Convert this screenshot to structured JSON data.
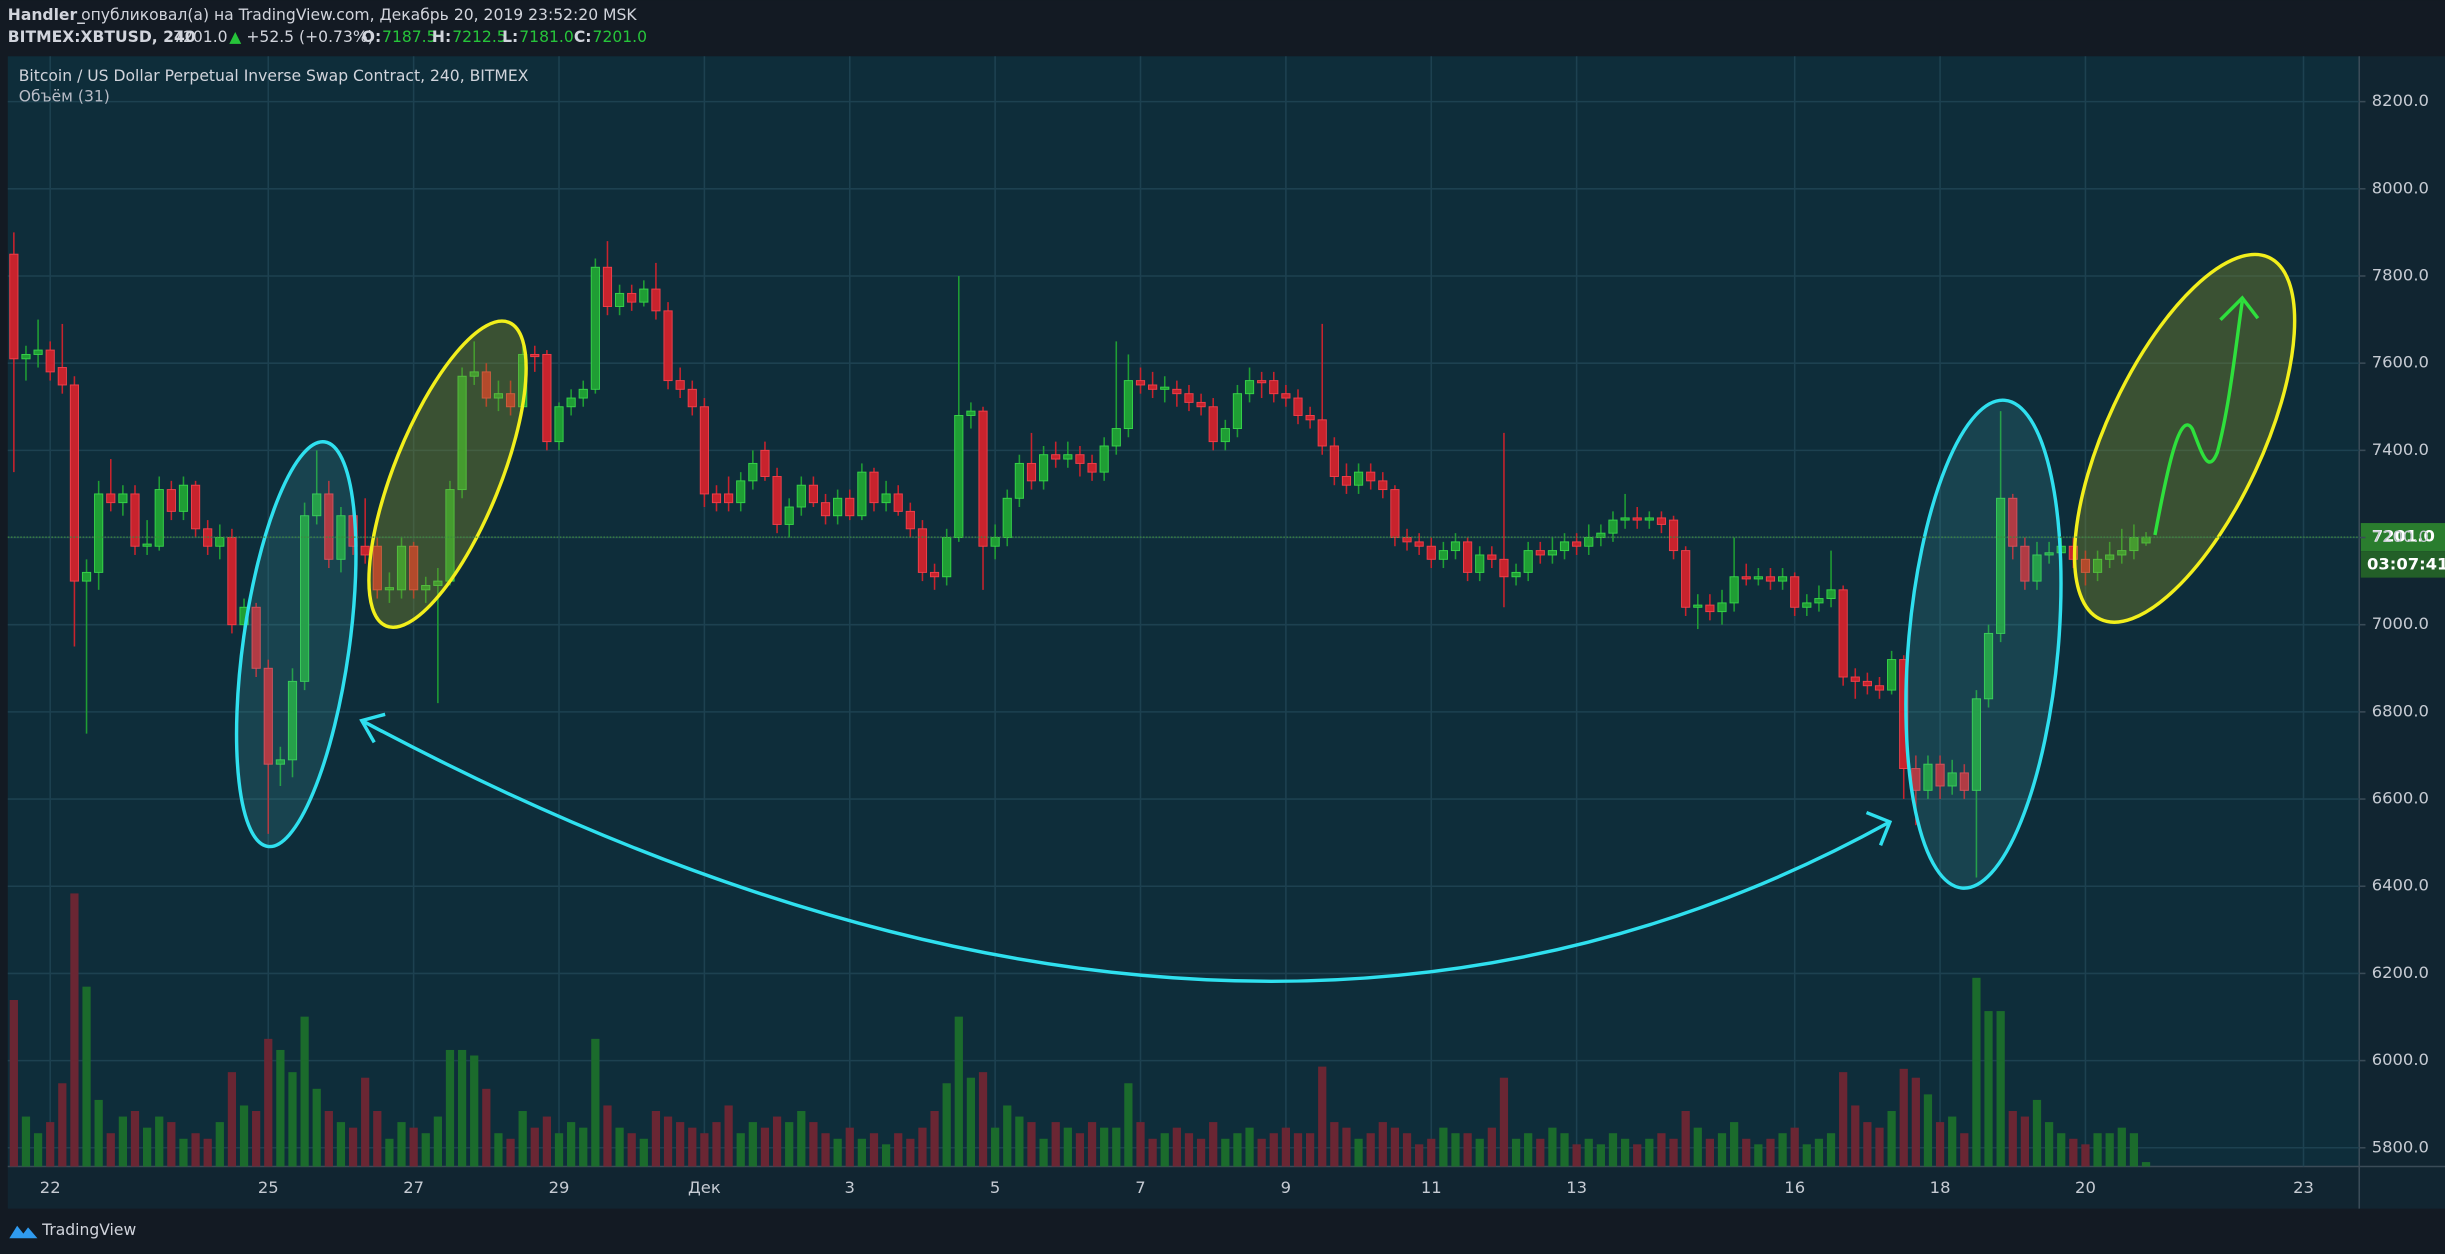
{
  "header": {
    "author": "Handler_",
    "published": "опубликовал(а) на TradingView.com, Декабрь 20, 2019 23:52:20 MSK",
    "symbol": "BITMEX:XBTUSD, 240",
    "last": "7201.0",
    "arrow": "▲",
    "change": "+52.5 (+0.73%)",
    "o_label": "O:",
    "o": "7187.5",
    "h_label": "H:",
    "h": "7212.5",
    "l_label": "L:",
    "l": "7181.0",
    "c_label": "C:",
    "c": "7201.0"
  },
  "footer": {
    "brand": "TradingView"
  },
  "chart_data": {
    "type": "candlestick",
    "title": "Bitcoin / US Dollar Perpetual Inverse Swap Contract, 240, BITMEX",
    "subtitle": "Объём (31)",
    "up_color": "#1f9e34",
    "down_color": "#c8232d",
    "volume_up_color": "#1b6b2c",
    "volume_down_color": "#6a2633",
    "grid": true,
    "ylim": [
      5757,
      8304
    ],
    "yticks": [
      {
        "value": 5800,
        "label": "5800.0"
      },
      {
        "value": 6000,
        "label": "6000.0"
      },
      {
        "value": 6200,
        "label": "6200.0"
      },
      {
        "value": 6400,
        "label": "6400.0"
      },
      {
        "value": 6600,
        "label": "6600.0"
      },
      {
        "value": 6800,
        "label": "6800.0"
      },
      {
        "value": 7000,
        "label": "7000.0"
      },
      {
        "value": 7200,
        "label": "7200.0"
      },
      {
        "value": 7400,
        "label": "7400.0"
      },
      {
        "value": 7600,
        "label": "7600.0"
      },
      {
        "value": 7800,
        "label": "7800.0"
      },
      {
        "value": 8000,
        "label": "8000.0"
      },
      {
        "value": 8200,
        "label": "8200.0"
      }
    ],
    "xlim": [
      -0.5,
      193.6
    ],
    "xticks": [
      {
        "value": 3,
        "label": "22"
      },
      {
        "value": 21,
        "label": "25"
      },
      {
        "value": 33,
        "label": "27"
      },
      {
        "value": 45,
        "label": "29"
      },
      {
        "value": 57,
        "label": "Дек"
      },
      {
        "value": 69,
        "label": "3"
      },
      {
        "value": 81,
        "label": "5"
      },
      {
        "value": 93,
        "label": "7"
      },
      {
        "value": 105,
        "label": "9"
      },
      {
        "value": 117,
        "label": "11"
      },
      {
        "value": 129,
        "label": "13"
      },
      {
        "value": 147,
        "label": "16"
      },
      {
        "value": 159,
        "label": "18"
      },
      {
        "value": 171,
        "label": "20"
      },
      {
        "value": 189,
        "label": "23"
      }
    ],
    "volume_lim": [
      0,
      1000
    ],
    "last_price": {
      "value": 7201,
      "label": "7201.0"
    },
    "countdown": "03:07:41",
    "candles": [
      [
        7850,
        7900,
        7350,
        7610
      ],
      [
        7610,
        7640,
        7560,
        7620
      ],
      [
        7620,
        7700,
        7590,
        7630
      ],
      [
        7630,
        7650,
        7560,
        7580
      ],
      [
        7590,
        7690,
        7530,
        7550
      ],
      [
        7550,
        7570,
        6950,
        7100
      ],
      [
        7100,
        7150,
        6750,
        7120
      ],
      [
        7120,
        7330,
        7080,
        7300
      ],
      [
        7300,
        7380,
        7260,
        7280
      ],
      [
        7280,
        7320,
        7250,
        7300
      ],
      [
        7300,
        7320,
        7160,
        7180
      ],
      [
        7180,
        7240,
        7160,
        7185
      ],
      [
        7180,
        7340,
        7170,
        7310
      ],
      [
        7310,
        7330,
        7240,
        7260
      ],
      [
        7260,
        7340,
        7240,
        7320
      ],
      [
        7320,
        7330,
        7200,
        7220
      ],
      [
        7220,
        7240,
        7160,
        7180
      ],
      [
        7180,
        7230,
        7150,
        7200
      ],
      [
        7200,
        7220,
        6980,
        7000
      ],
      [
        7000,
        7060,
        6960,
        7040
      ],
      [
        7040,
        7050,
        6880,
        6900
      ],
      [
        6900,
        6920,
        6520,
        6680
      ],
      [
        6680,
        6720,
        6630,
        6690
      ],
      [
        6690,
        6900,
        6650,
        6870
      ],
      [
        6870,
        7280,
        6850,
        7250
      ],
      [
        7250,
        7400,
        7230,
        7300
      ],
      [
        7300,
        7330,
        7130,
        7150
      ],
      [
        7150,
        7270,
        7120,
        7250
      ],
      [
        7250,
        7280,
        7160,
        7180
      ],
      [
        7180,
        7290,
        7140,
        7160
      ],
      [
        7180,
        7200,
        7060,
        7080
      ],
      [
        7080,
        7120,
        7050,
        7085
      ],
      [
        7080,
        7200,
        7060,
        7180
      ],
      [
        7180,
        7190,
        7060,
        7080
      ],
      [
        7080,
        7110,
        7050,
        7090
      ],
      [
        7090,
        7130,
        6820,
        7100
      ],
      [
        7100,
        7330,
        7090,
        7310
      ],
      [
        7310,
        7590,
        7290,
        7570
      ],
      [
        7570,
        7650,
        7550,
        7580
      ],
      [
        7580,
        7600,
        7500,
        7520
      ],
      [
        7520,
        7560,
        7490,
        7530
      ],
      [
        7530,
        7560,
        7480,
        7500
      ],
      [
        7500,
        7640,
        7490,
        7620
      ],
      [
        7620,
        7640,
        7580,
        7615
      ],
      [
        7620,
        7630,
        7400,
        7420
      ],
      [
        7420,
        7510,
        7400,
        7500
      ],
      [
        7500,
        7540,
        7480,
        7520
      ],
      [
        7520,
        7560,
        7500,
        7540
      ],
      [
        7540,
        7840,
        7530,
        7820
      ],
      [
        7820,
        7880,
        7710,
        7730
      ],
      [
        7730,
        7780,
        7710,
        7760
      ],
      [
        7760,
        7780,
        7720,
        7740
      ],
      [
        7740,
        7790,
        7730,
        7770
      ],
      [
        7770,
        7830,
        7700,
        7720
      ],
      [
        7720,
        7740,
        7540,
        7560
      ],
      [
        7560,
        7590,
        7520,
        7540
      ],
      [
        7540,
        7560,
        7480,
        7500
      ],
      [
        7500,
        7520,
        7270,
        7300
      ],
      [
        7300,
        7320,
        7260,
        7280
      ],
      [
        7300,
        7340,
        7260,
        7280
      ],
      [
        7280,
        7350,
        7260,
        7330
      ],
      [
        7330,
        7400,
        7310,
        7370
      ],
      [
        7400,
        7420,
        7330,
        7340
      ],
      [
        7340,
        7360,
        7210,
        7230
      ],
      [
        7230,
        7290,
        7200,
        7270
      ],
      [
        7270,
        7340,
        7250,
        7320
      ],
      [
        7320,
        7340,
        7270,
        7280
      ],
      [
        7280,
        7300,
        7230,
        7250
      ],
      [
        7250,
        7310,
        7230,
        7290
      ],
      [
        7290,
        7310,
        7240,
        7250
      ],
      [
        7250,
        7370,
        7240,
        7350
      ],
      [
        7350,
        7360,
        7260,
        7280
      ],
      [
        7280,
        7330,
        7260,
        7300
      ],
      [
        7300,
        7320,
        7250,
        7260
      ],
      [
        7260,
        7280,
        7200,
        7220
      ],
      [
        7220,
        7240,
        7100,
        7120
      ],
      [
        7120,
        7140,
        7080,
        7110
      ],
      [
        7110,
        7220,
        7090,
        7200
      ],
      [
        7200,
        7800,
        7190,
        7480
      ],
      [
        7480,
        7510,
        7450,
        7490
      ],
      [
        7490,
        7500,
        7080,
        7180
      ],
      [
        7180,
        7230,
        7150,
        7200
      ],
      [
        7200,
        7310,
        7180,
        7290
      ],
      [
        7290,
        7390,
        7270,
        7370
      ],
      [
        7370,
        7440,
        7310,
        7330
      ],
      [
        7330,
        7410,
        7310,
        7390
      ],
      [
        7390,
        7420,
        7360,
        7380
      ],
      [
        7380,
        7420,
        7360,
        7390
      ],
      [
        7390,
        7410,
        7340,
        7370
      ],
      [
        7370,
        7390,
        7330,
        7350
      ],
      [
        7350,
        7430,
        7330,
        7410
      ],
      [
        7410,
        7650,
        7390,
        7450
      ],
      [
        7450,
        7620,
        7430,
        7560
      ],
      [
        7560,
        7590,
        7530,
        7550
      ],
      [
        7550,
        7580,
        7520,
        7540
      ],
      [
        7540,
        7570,
        7510,
        7545
      ],
      [
        7540,
        7560,
        7500,
        7530
      ],
      [
        7530,
        7550,
        7490,
        7510
      ],
      [
        7510,
        7530,
        7480,
        7500
      ],
      [
        7500,
        7520,
        7400,
        7420
      ],
      [
        7420,
        7470,
        7400,
        7450
      ],
      [
        7450,
        7550,
        7430,
        7530
      ],
      [
        7530,
        7590,
        7510,
        7560
      ],
      [
        7560,
        7580,
        7520,
        7555
      ],
      [
        7560,
        7580,
        7510,
        7530
      ],
      [
        7530,
        7550,
        7500,
        7520
      ],
      [
        7520,
        7540,
        7460,
        7480
      ],
      [
        7480,
        7500,
        7450,
        7470
      ],
      [
        7470,
        7690,
        7390,
        7410
      ],
      [
        7410,
        7430,
        7320,
        7340
      ],
      [
        7340,
        7370,
        7300,
        7320
      ],
      [
        7320,
        7370,
        7300,
        7350
      ],
      [
        7350,
        7370,
        7310,
        7330
      ],
      [
        7330,
        7350,
        7290,
        7310
      ],
      [
        7310,
        7320,
        7180,
        7200
      ],
      [
        7200,
        7220,
        7170,
        7190
      ],
      [
        7190,
        7210,
        7160,
        7180
      ],
      [
        7180,
        7200,
        7130,
        7150
      ],
      [
        7150,
        7190,
        7130,
        7170
      ],
      [
        7170,
        7210,
        7150,
        7190
      ],
      [
        7190,
        7200,
        7100,
        7120
      ],
      [
        7120,
        7180,
        7100,
        7160
      ],
      [
        7160,
        7180,
        7130,
        7150
      ],
      [
        7150,
        7440,
        7040,
        7110
      ],
      [
        7110,
        7140,
        7090,
        7120
      ],
      [
        7120,
        7190,
        7100,
        7170
      ],
      [
        7170,
        7190,
        7140,
        7160
      ],
      [
        7160,
        7200,
        7140,
        7170
      ],
      [
        7170,
        7210,
        7150,
        7190
      ],
      [
        7190,
        7210,
        7160,
        7180
      ],
      [
        7180,
        7230,
        7160,
        7200
      ],
      [
        7200,
        7230,
        7180,
        7210
      ],
      [
        7210,
        7260,
        7190,
        7240
      ],
      [
        7240,
        7300,
        7220,
        7245
      ],
      [
        7245,
        7270,
        7220,
        7240
      ],
      [
        7240,
        7260,
        7220,
        7245
      ],
      [
        7245,
        7260,
        7210,
        7230
      ],
      [
        7240,
        7250,
        7150,
        7170
      ],
      [
        7170,
        7180,
        7020,
        7040
      ],
      [
        7040,
        7070,
        6990,
        7045
      ],
      [
        7045,
        7070,
        7010,
        7030
      ],
      [
        7030,
        7080,
        7000,
        7050
      ],
      [
        7050,
        7200,
        7030,
        7110
      ],
      [
        7110,
        7140,
        7090,
        7105
      ],
      [
        7105,
        7130,
        7090,
        7110
      ],
      [
        7110,
        7130,
        7080,
        7100
      ],
      [
        7100,
        7130,
        7080,
        7110
      ],
      [
        7110,
        7120,
        7020,
        7040
      ],
      [
        7040,
        7070,
        7020,
        7050
      ],
      [
        7050,
        7090,
        7030,
        7060
      ],
      [
        7060,
        7170,
        7040,
        7080
      ],
      [
        7080,
        7090,
        6860,
        6880
      ],
      [
        6880,
        6900,
        6830,
        6870
      ],
      [
        6870,
        6890,
        6840,
        6860
      ],
      [
        6860,
        6880,
        6830,
        6850
      ],
      [
        6850,
        6940,
        6840,
        6920
      ],
      [
        6920,
        6930,
        6600,
        6670
      ],
      [
        6670,
        6700,
        6540,
        6620
      ],
      [
        6620,
        6700,
        6600,
        6680
      ],
      [
        6680,
        6700,
        6600,
        6630
      ],
      [
        6630,
        6690,
        6610,
        6660
      ],
      [
        6660,
        6680,
        6600,
        6620
      ],
      [
        6620,
        6850,
        6420,
        6830
      ],
      [
        6830,
        7000,
        6810,
        6980
      ],
      [
        6980,
        7490,
        6960,
        7290
      ],
      [
        7290,
        7300,
        7150,
        7180
      ],
      [
        7180,
        7200,
        7080,
        7100
      ],
      [
        7100,
        7190,
        7080,
        7160
      ],
      [
        7160,
        7190,
        7140,
        7165
      ],
      [
        7165,
        7200,
        7140,
        7180
      ],
      [
        7180,
        7200,
        7130,
        7150
      ],
      [
        7150,
        7170,
        7090,
        7120
      ],
      [
        7120,
        7170,
        7100,
        7150
      ],
      [
        7150,
        7190,
        7130,
        7160
      ],
      [
        7160,
        7220,
        7140,
        7170
      ],
      [
        7170,
        7230,
        7150,
        7200
      ],
      [
        7187.5,
        7212.5,
        7181,
        7201
      ]
    ],
    "volumes": [
      150,
      45,
      30,
      40,
      75,
      246,
      162,
      60,
      30,
      45,
      50,
      35,
      45,
      40,
      25,
      30,
      25,
      40,
      85,
      55,
      50,
      115,
      105,
      85,
      135,
      70,
      50,
      40,
      35,
      80,
      50,
      25,
      40,
      35,
      30,
      45,
      105,
      105,
      100,
      70,
      30,
      25,
      50,
      35,
      45,
      30,
      40,
      35,
      115,
      55,
      35,
      30,
      25,
      50,
      45,
      40,
      35,
      30,
      40,
      55,
      30,
      40,
      35,
      45,
      40,
      50,
      40,
      30,
      25,
      35,
      25,
      30,
      20,
      30,
      25,
      35,
      50,
      75,
      135,
      80,
      85,
      35,
      55,
      45,
      40,
      25,
      40,
      35,
      30,
      40,
      35,
      35,
      75,
      40,
      25,
      30,
      35,
      30,
      25,
      40,
      25,
      30,
      35,
      25,
      30,
      35,
      30,
      30,
      90,
      40,
      35,
      25,
      30,
      40,
      35,
      30,
      20,
      25,
      35,
      30,
      30,
      25,
      35,
      80,
      25,
      30,
      25,
      35,
      30,
      20,
      25,
      20,
      30,
      25,
      20,
      25,
      30,
      25,
      50,
      35,
      25,
      30,
      40,
      25,
      20,
      25,
      30,
      35,
      20,
      25,
      30,
      85,
      55,
      40,
      35,
      50,
      88,
      80,
      65,
      40,
      45,
      30,
      170,
      140,
      140,
      50,
      45,
      60,
      40,
      30,
      25,
      20,
      30,
      30,
      35,
      30,
      4
    ]
  }
}
